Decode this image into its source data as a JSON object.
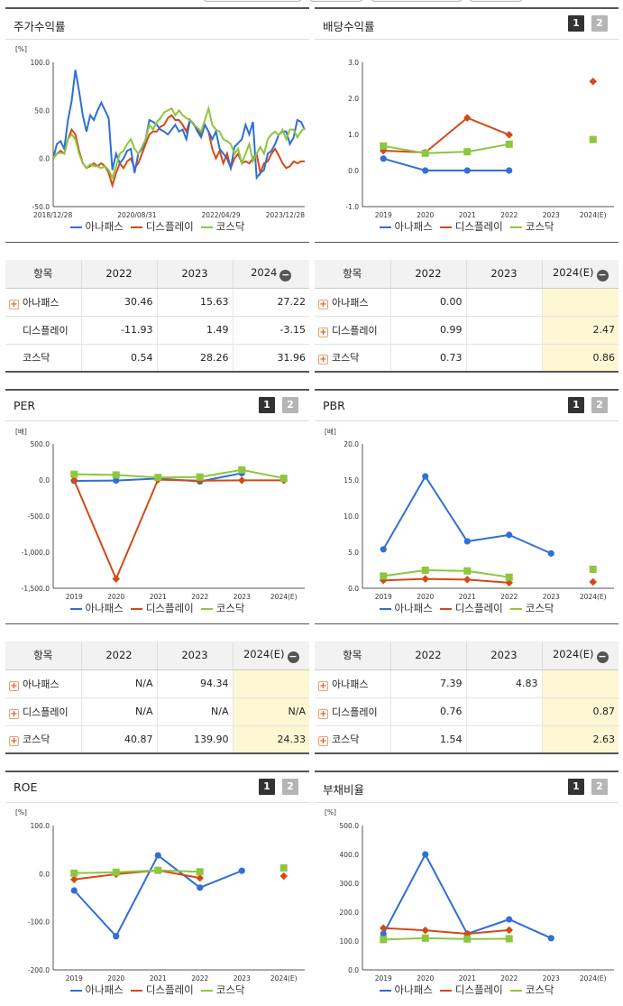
{
  "colors": {
    "anapass": "#2f6fd6",
    "display": "#d24a17",
    "kosdaq": "#8dc63f"
  },
  "legend": [
    "아나패스",
    "디스플레이",
    "코스닥"
  ],
  "pages": {
    "p1": "1",
    "p2": "2"
  },
  "stock_panel": {
    "title": "주가수익률"
  },
  "dividend_panel": {
    "title": "배당수익률"
  },
  "per_panel": {
    "title": "PER"
  },
  "pbr_panel": {
    "title": "PBR"
  },
  "roe_panel": {
    "title": "ROE"
  },
  "debt_panel": {
    "title": "부채비율"
  },
  "table_stock": {
    "header": [
      "항목",
      "2022",
      "2023",
      "2024"
    ],
    "rows": [
      {
        "name": "아나패스",
        "plus": true,
        "values": [
          "30.46",
          "15.63",
          "27.22"
        ]
      },
      {
        "name": "디스플레이",
        "plus": false,
        "values": [
          "-11.93",
          "1.49",
          "-3.15"
        ]
      },
      {
        "name": "코스닥",
        "plus": false,
        "values": [
          "0.54",
          "28.26",
          "31.96"
        ]
      }
    ]
  },
  "table_dividend": {
    "header": [
      "항목",
      "2022",
      "2023",
      "2024(E)"
    ],
    "rows": [
      {
        "name": "아나패스",
        "plus": true,
        "values": [
          "0.00",
          "",
          ""
        ]
      },
      {
        "name": "디스플레이",
        "plus": true,
        "values": [
          "0.99",
          "",
          "2.47"
        ]
      },
      {
        "name": "코스닥",
        "plus": true,
        "values": [
          "0.73",
          "",
          "0.86"
        ]
      }
    ]
  },
  "table_per": {
    "header": [
      "항목",
      "2022",
      "2023",
      "2024(E)"
    ],
    "rows": [
      {
        "name": "아나패스",
        "plus": true,
        "values": [
          "N/A",
          "94.34",
          ""
        ]
      },
      {
        "name": "디스플레이",
        "plus": true,
        "values": [
          "N/A",
          "N/A",
          "N/A"
        ]
      },
      {
        "name": "코스닥",
        "plus": true,
        "values": [
          "40.87",
          "139.90",
          "24.33"
        ]
      }
    ]
  },
  "table_pbr": {
    "header": [
      "항목",
      "2022",
      "2023",
      "2024(E)"
    ],
    "rows": [
      {
        "name": "아나패스",
        "plus": true,
        "values": [
          "7.39",
          "4.83",
          ""
        ]
      },
      {
        "name": "디스플레이",
        "plus": true,
        "values": [
          "0.76",
          "",
          "0.87"
        ]
      },
      {
        "name": "코스닥",
        "plus": true,
        "values": [
          "1.54",
          "",
          "2.63"
        ]
      }
    ]
  },
  "chart_data": [
    {
      "id": "stock",
      "type": "line",
      "unit": "[%]",
      "ylim": [
        -50,
        100
      ],
      "yticks": [
        "100.0",
        "50.0",
        "0.0",
        "-50.0"
      ],
      "xticklabels": [
        "2018/12/28",
        "2020/08/31",
        "2022/04/29",
        "2023/12/28"
      ],
      "series": [
        {
          "name": "아나패스",
          "values": [
            0,
            15,
            18,
            10,
            40,
            60,
            92,
            70,
            45,
            28,
            45,
            40,
            50,
            58,
            50,
            42,
            -12,
            5,
            -5,
            0,
            8,
            10,
            -15,
            5,
            10,
            20,
            40,
            38,
            35,
            30,
            28,
            25,
            30,
            35,
            28,
            30,
            20,
            40,
            36,
            28,
            22,
            35,
            28,
            20,
            28,
            10,
            5,
            0,
            -10,
            12,
            16,
            20,
            35,
            25,
            38,
            -20,
            -15,
            -12,
            5,
            8,
            15,
            25,
            28,
            28,
            15,
            22,
            40,
            38,
            30
          ]
        },
        {
          "name": "디스플레이",
          "values": [
            0,
            5,
            8,
            5,
            20,
            30,
            25,
            8,
            -5,
            -10,
            -8,
            -5,
            -8,
            -5,
            -8,
            -15,
            -28,
            -15,
            -5,
            -10,
            -3,
            0,
            -10,
            -5,
            5,
            15,
            25,
            28,
            28,
            33,
            35,
            42,
            45,
            40,
            40,
            35,
            28,
            40,
            35,
            30,
            25,
            35,
            28,
            10,
            0,
            8,
            -5,
            5,
            -10,
            0,
            5,
            -5,
            -3,
            -5,
            0,
            5,
            -15,
            -5,
            -3,
            5,
            10,
            3,
            -5,
            -10,
            -8,
            -3,
            -5,
            -3,
            -3
          ]
        },
        {
          "name": "코스닥",
          "values": [
            0,
            5,
            6,
            5,
            20,
            25,
            20,
            5,
            -5,
            -10,
            -6,
            -8,
            -8,
            -10,
            -8,
            -12,
            -20,
            -8,
            5,
            8,
            15,
            20,
            10,
            5,
            12,
            20,
            35,
            30,
            38,
            42,
            48,
            50,
            52,
            45,
            50,
            45,
            42,
            40,
            35,
            32,
            28,
            40,
            52,
            35,
            30,
            28,
            20,
            18,
            15,
            5,
            10,
            -5,
            5,
            15,
            -3,
            5,
            12,
            5,
            20,
            25,
            28,
            24,
            30,
            20,
            30,
            30,
            22,
            28,
            32
          ]
        }
      ]
    },
    {
      "id": "dividend",
      "type": "line",
      "unit": "",
      "categories": [
        "2019",
        "2020",
        "2021",
        "2022",
        "2023",
        "2024(E)"
      ],
      "ylim": [
        -1,
        3
      ],
      "yticks": [
        "3.0",
        "2.0",
        "1.0",
        "0.0",
        "-1.0"
      ],
      "series": [
        {
          "name": "아나패스",
          "values": [
            0.33,
            0.0,
            0.0,
            0.0,
            null,
            null
          ]
        },
        {
          "name": "디스플레이",
          "values": [
            0.55,
            0.5,
            1.46,
            0.99,
            null,
            2.47
          ]
        },
        {
          "name": "코스닥",
          "values": [
            0.68,
            0.48,
            0.52,
            0.73,
            null,
            0.86
          ]
        }
      ]
    },
    {
      "id": "per",
      "type": "line",
      "unit": "[배]",
      "categories": [
        "2019",
        "2020",
        "2021",
        "2022",
        "2023",
        "2024(E)"
      ],
      "ylim": [
        -1500,
        500
      ],
      "yticks": [
        "500.0",
        "0.0",
        "-500.0",
        "-1,000.0",
        "-1,500.0"
      ],
      "series": [
        {
          "name": "아나패스",
          "values": [
            -12,
            -8,
            20,
            -20,
            94.34,
            null
          ]
        },
        {
          "name": "디스플레이",
          "values": [
            -5,
            -1370,
            5,
            -10,
            -5,
            -5
          ]
        },
        {
          "name": "코스닥",
          "values": [
            80,
            70,
            35,
            40.87,
            139.9,
            24.33
          ]
        }
      ]
    },
    {
      "id": "pbr",
      "type": "line",
      "unit": "[배]",
      "categories": [
        "2019",
        "2020",
        "2021",
        "2022",
        "2023",
        "2024(E)"
      ],
      "ylim": [
        0,
        20
      ],
      "yticks": [
        "20.0",
        "15.0",
        "10.0",
        "5.0",
        "0.0"
      ],
      "series": [
        {
          "name": "아나패스",
          "values": [
            5.4,
            15.5,
            6.5,
            7.39,
            4.83,
            null
          ]
        },
        {
          "name": "디스플레이",
          "values": [
            1.1,
            1.3,
            1.2,
            0.76,
            null,
            0.87
          ]
        },
        {
          "name": "코스닥",
          "values": [
            1.7,
            2.5,
            2.4,
            1.54,
            null,
            2.63
          ]
        }
      ]
    },
    {
      "id": "roe",
      "type": "line",
      "unit": "[%]",
      "categories": [
        "2019",
        "2020",
        "2021",
        "2022",
        "2023",
        "2024(E)"
      ],
      "ylim": [
        -200,
        100
      ],
      "yticks": [
        "100.0",
        "0.0",
        "-100.0",
        "-200.0"
      ],
      "series": [
        {
          "name": "아나패스",
          "values": [
            -35,
            -130,
            38,
            -29,
            6,
            null
          ]
        },
        {
          "name": "디스플레이",
          "values": [
            -12,
            -1,
            7,
            -9,
            null,
            -5
          ]
        },
        {
          "name": "코스닥",
          "values": [
            1,
            3,
            7,
            4,
            null,
            12
          ]
        }
      ]
    },
    {
      "id": "debt",
      "type": "line",
      "unit": "[%]",
      "categories": [
        "2019",
        "2020",
        "2021",
        "2022",
        "2023",
        "2024(E)"
      ],
      "ylim": [
        0,
        500
      ],
      "yticks": [
        "500.0",
        "400.0",
        "300.0",
        "200.0",
        "100.0",
        "0.0"
      ],
      "series": [
        {
          "name": "아나패스",
          "values": [
            125,
            400,
            125,
            175,
            110,
            null
          ]
        },
        {
          "name": "디스플레이",
          "values": [
            145,
            137,
            125,
            138,
            null,
            null
          ]
        },
        {
          "name": "코스닥",
          "values": [
            105,
            110,
            107,
            108,
            null,
            null
          ]
        }
      ]
    }
  ]
}
